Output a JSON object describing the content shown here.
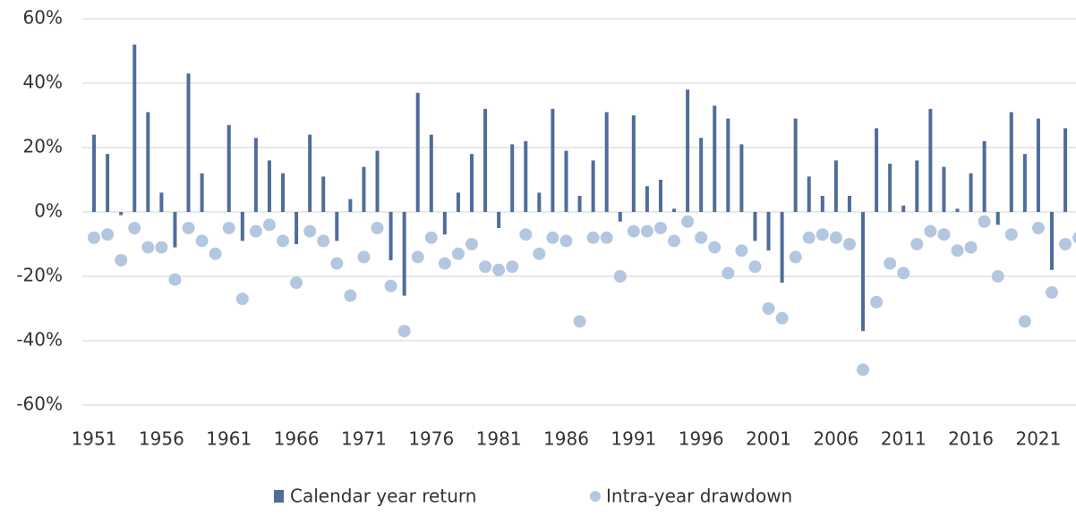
{
  "chart_data": {
    "type": "bar_scatter",
    "categories": [
      "1951",
      null,
      null,
      null,
      null,
      "1956",
      null,
      null,
      null,
      null,
      "1961",
      null,
      null,
      null,
      null,
      "1966",
      null,
      null,
      null,
      null,
      "1971",
      null,
      null,
      null,
      null,
      "1976",
      null,
      null,
      null,
      null,
      "1981",
      null,
      null,
      null,
      null,
      "1986",
      null,
      null,
      null,
      null,
      "1991",
      null,
      null,
      null,
      null,
      "1996",
      null,
      null,
      null,
      null,
      "2001",
      null,
      null,
      null,
      null,
      "2006",
      null,
      null,
      null,
      null,
      "2011",
      null,
      null,
      null,
      null,
      "2016",
      null,
      null,
      null,
      null,
      "2021",
      null,
      null,
      null
    ],
    "series": [
      {
        "name": "Calendar year return",
        "color": "#4f6d9a",
        "kind": "bar",
        "values": [
          24,
          18,
          -1,
          52,
          31,
          6,
          -11,
          43,
          12,
          0,
          27,
          -9,
          23,
          16,
          12,
          -10,
          24,
          11,
          -9,
          4,
          14,
          19,
          -15,
          -26,
          37,
          24,
          -7,
          6,
          18,
          32,
          -5,
          21,
          22,
          6,
          32,
          19,
          5,
          16,
          31,
          -3,
          30,
          8,
          10,
          1,
          38,
          23,
          33,
          29,
          21,
          -9,
          -12,
          -22,
          29,
          11,
          5,
          16,
          5,
          -37,
          26,
          15,
          2,
          16,
          32,
          14,
          1,
          12,
          22,
          -4,
          31,
          18,
          29,
          -18,
          26,
          24
        ]
      },
      {
        "name": "Intra-year drawdown",
        "color": "#b4c7e0",
        "kind": "dot",
        "values": [
          -8,
          -7,
          -15,
          -5,
          -11,
          -11,
          -21,
          -5,
          -9,
          -13,
          -5,
          -27,
          -6,
          -4,
          -9,
          -22,
          -6,
          -9,
          -16,
          -26,
          -14,
          -5,
          -23,
          -37,
          -14,
          -8,
          -16,
          -13,
          -10,
          -17,
          -18,
          -17,
          -7,
          -13,
          -8,
          -9,
          -34,
          -8,
          -8,
          -20,
          -6,
          -6,
          -5,
          -9,
          -3,
          -8,
          -11,
          -19,
          -12,
          -17,
          -30,
          -33,
          -14,
          -8,
          -7,
          -8,
          -10,
          -49,
          -28,
          -16,
          -19,
          -10,
          -6,
          -7,
          -12,
          -11,
          -3,
          -20,
          -7,
          -34,
          -5,
          -25,
          -10,
          -8
        ]
      }
    ],
    "ylim": [
      -60,
      60
    ],
    "yticks": [
      {
        "value": -60,
        "label": "-60%"
      },
      {
        "value": -40,
        "label": "-40%"
      },
      {
        "value": -20,
        "label": "-20%"
      },
      {
        "value": 0,
        "label": "0%"
      },
      {
        "value": 20,
        "label": "20%"
      },
      {
        "value": 40,
        "label": "40%"
      },
      {
        "value": 60,
        "label": "60%"
      }
    ],
    "grid": true,
    "legend": "bottom"
  }
}
